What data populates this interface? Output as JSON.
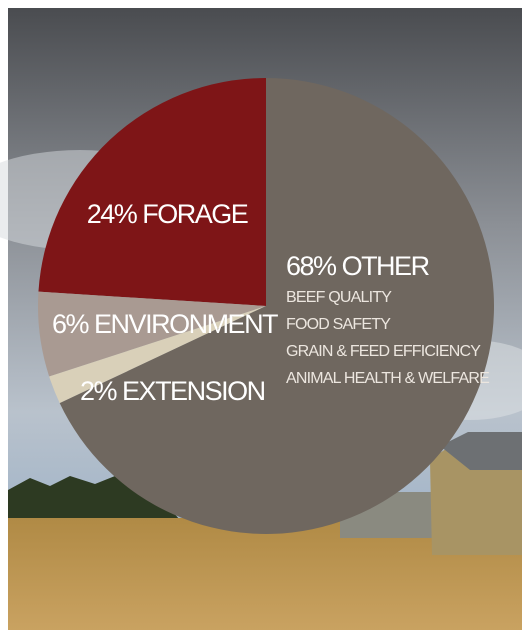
{
  "chart_data": {
    "type": "pie",
    "categories": [
      "FORAGE",
      "ENVIRONMENT",
      "EXTENSION",
      "OTHER"
    ],
    "values": [
      24,
      6,
      2,
      68
    ],
    "value_labels": [
      "24%",
      "6%",
      "2%",
      "68%"
    ],
    "colors": [
      "#7e1517",
      "#a99a92",
      "#d9d0b9",
      "#6f675f"
    ],
    "annotations": [
      "BEEF QUALITY",
      "FOOD SAFETY",
      "GRAIN & FEED EFFICIENCY",
      "ANIMAL HEALTH & WELFARE"
    ]
  }
}
